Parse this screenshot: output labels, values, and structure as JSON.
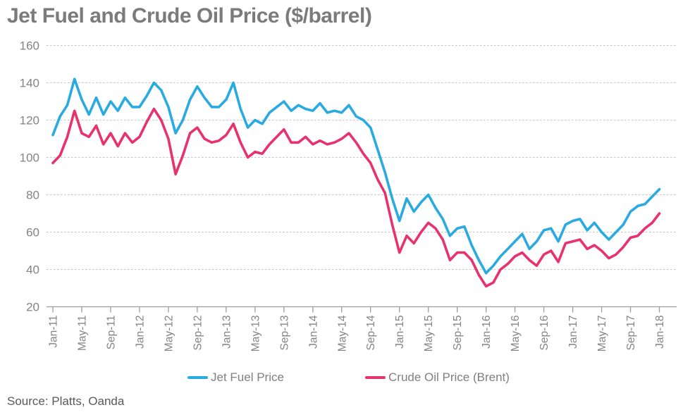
{
  "title": "Jet Fuel and Crude Oil Price ($/barrel)",
  "source": "Source: Platts, Oanda",
  "legend": {
    "items": [
      {
        "label": "Jet Fuel Price",
        "color": "#29abe2"
      },
      {
        "label": "Crude Oil Price (Brent)",
        "color": "#e8326d"
      }
    ]
  },
  "colors": {
    "title_text": "#7b7b7b",
    "axis_text": "#848484",
    "legend_text": "#808080",
    "source_text": "#595959",
    "gridline": "#c3c3c3",
    "axis_line": "#9d9d9d",
    "background": "#ffffff",
    "jet_fuel": "#29abe2",
    "crude_oil": "#e8326d"
  },
  "chart_data": {
    "type": "line",
    "title": "Jet Fuel and Crude Oil Price ($/barrel)",
    "x_start": "Jan-2011",
    "x_end": "Jan-2018",
    "x_interval": "monthly (approximated from weekly line)",
    "x_tick_labels": [
      "Jan-11",
      "May-11",
      "Sep-11",
      "Jan-12",
      "May-12",
      "Sep-12",
      "Jan-13",
      "May-13",
      "Sep-13",
      "Jan-14",
      "May-14",
      "Sep-14",
      "Jan-15",
      "May-15",
      "Sep-15",
      "Jan-16",
      "May-16",
      "Sep-16",
      "Jan-17",
      "May-17",
      "Sep-17",
      "Jan-18"
    ],
    "x_ticks_every_n_points": 4,
    "ylim": [
      20,
      160
    ],
    "y_ticks": [
      160,
      140,
      120,
      100,
      80,
      60,
      40,
      20
    ],
    "grid": "horizontal dashed",
    "legend_position": "bottom",
    "series": [
      {
        "name": "Jet Fuel Price",
        "color": "#29abe2",
        "values": [
          112,
          122,
          128,
          142,
          131,
          123,
          132,
          123,
          130,
          125,
          132,
          127,
          127,
          133,
          140,
          136,
          127,
          113,
          120,
          131,
          138,
          132,
          127,
          127,
          131,
          140,
          126,
          116,
          120,
          118,
          124,
          127,
          130,
          125,
          128,
          126,
          125,
          129,
          124,
          125,
          124,
          128,
          122,
          120,
          116,
          104,
          92,
          78,
          66,
          78,
          71,
          76,
          80,
          73,
          67,
          58,
          62,
          63,
          53,
          45,
          38,
          42,
          47,
          51,
          55,
          59,
          51,
          55,
          61,
          62,
          55,
          64,
          66,
          67,
          61,
          65,
          60,
          56,
          60,
          64,
          71,
          74,
          75,
          79,
          83
        ]
      },
      {
        "name": "Crude Oil Price (Brent)",
        "color": "#e8326d",
        "values": [
          97,
          101,
          111,
          125,
          113,
          111,
          117,
          107,
          113,
          106,
          113,
          108,
          111,
          119,
          126,
          120,
          110,
          91,
          101,
          113,
          116,
          110,
          108,
          109,
          112,
          118,
          108,
          100,
          103,
          102,
          107,
          111,
          115,
          108,
          108,
          111,
          107,
          109,
          107,
          108,
          110,
          113,
          108,
          102,
          97,
          88,
          81,
          64,
          49,
          58,
          54,
          60,
          65,
          62,
          56,
          45,
          49,
          49,
          45,
          37,
          31,
          33,
          40,
          43,
          47,
          49,
          45,
          42,
          48,
          50,
          44,
          54,
          55,
          56,
          51,
          53,
          50,
          46,
          48,
          52,
          57,
          58,
          62,
          65,
          70
        ]
      }
    ]
  }
}
